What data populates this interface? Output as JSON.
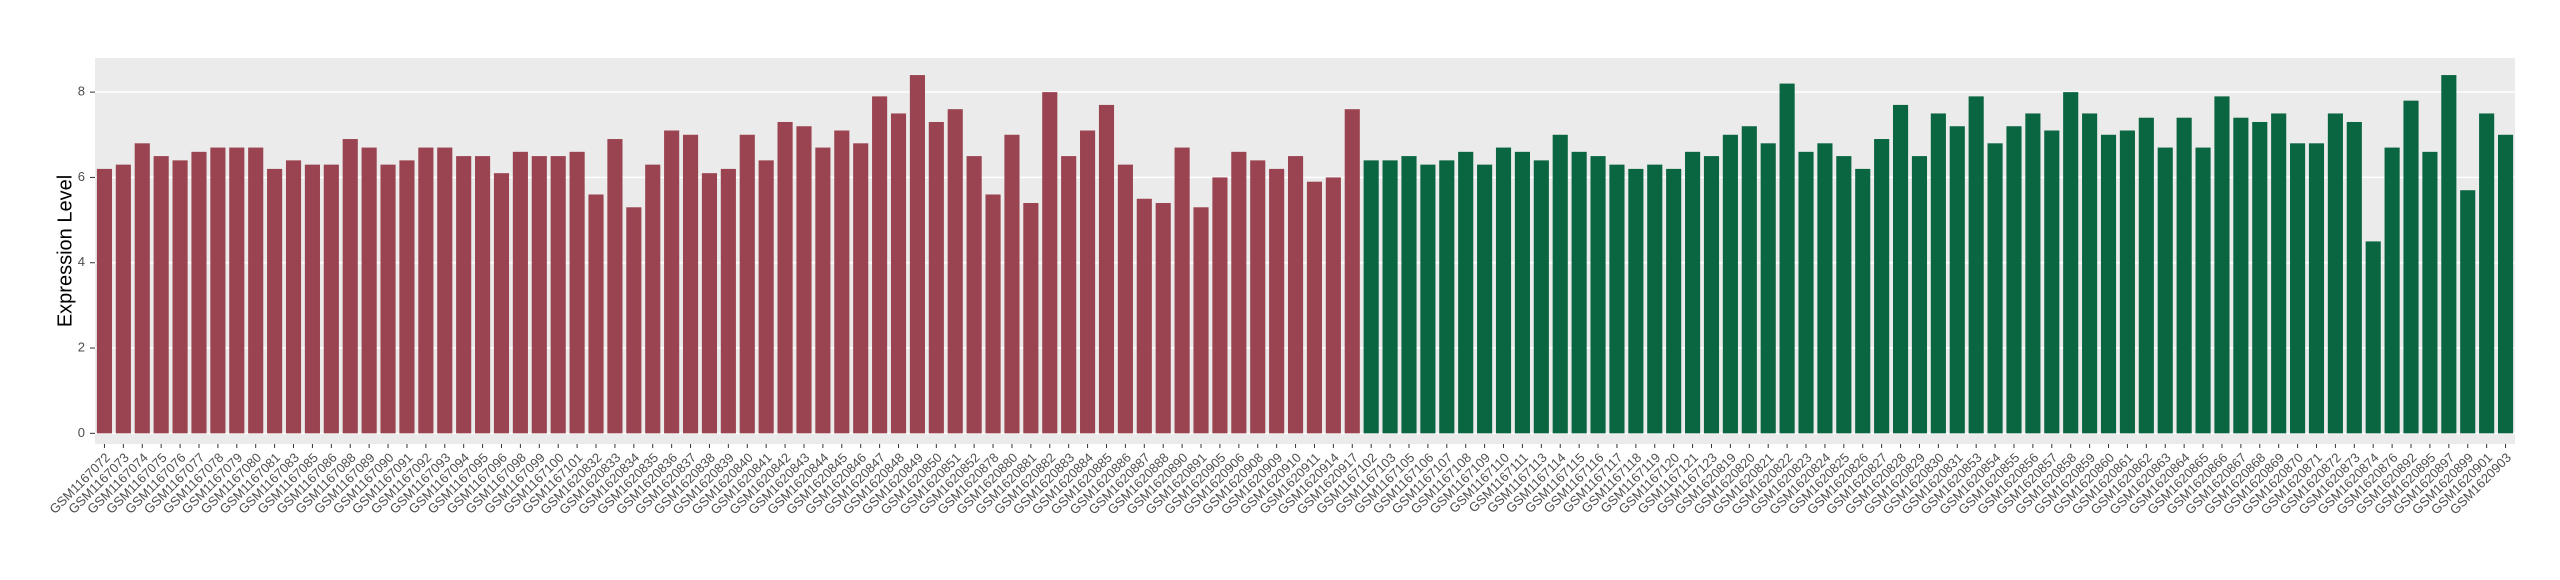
{
  "chart_data": {
    "type": "bar",
    "y_label": "Expression Level",
    "categories": [
      "GSM1167072",
      "GSM1167073",
      "GSM1167074",
      "GSM1167075",
      "GSM1167076",
      "GSM1167077",
      "GSM1167078",
      "GSM1167079",
      "GSM1167080",
      "GSM1167081",
      "GSM1167083",
      "GSM1167085",
      "GSM1167086",
      "GSM1167088",
      "GSM1167089",
      "GSM1167090",
      "GSM1167091",
      "GSM1167092",
      "GSM1167093",
      "GSM1167094",
      "GSM1167095",
      "GSM1167096",
      "GSM1167098",
      "GSM1167099",
      "GSM1167100",
      "GSM1167101",
      "GSM1620832",
      "GSM1620833",
      "GSM1620834",
      "GSM1620835",
      "GSM1620836",
      "GSM1620837",
      "GSM1620838",
      "GSM1620839",
      "GSM1620840",
      "GSM1620841",
      "GSM1620842",
      "GSM1620843",
      "GSM1620844",
      "GSM1620845",
      "GSM1620846",
      "GSM1620847",
      "GSM1620848",
      "GSM1620849",
      "GSM1620850",
      "GSM1620851",
      "GSM1620852",
      "GSM1620878",
      "GSM1620880",
      "GSM1620881",
      "GSM1620882",
      "GSM1620883",
      "GSM1620884",
      "GSM1620885",
      "GSM1620886",
      "GSM1620887",
      "GSM1620888",
      "GSM1620890",
      "GSM1620891",
      "GSM1620905",
      "GSM1620906",
      "GSM1620908",
      "GSM1620909",
      "GSM1620910",
      "GSM1620911",
      "GSM1620914",
      "GSM1620917",
      "GSM1167102",
      "GSM1167103",
      "GSM1167105",
      "GSM1167106",
      "GSM1167107",
      "GSM1167108",
      "GSM1167109",
      "GSM1167110",
      "GSM1167111",
      "GSM1167113",
      "GSM1167114",
      "GSM1167115",
      "GSM1167116",
      "GSM1167117",
      "GSM1167118",
      "GSM1167119",
      "GSM1167120",
      "GSM1167121",
      "GSM1167123",
      "GSM1620819",
      "GSM1620820",
      "GSM1620821",
      "GSM1620822",
      "GSM1620823",
      "GSM1620824",
      "GSM1620825",
      "GSM1620826",
      "GSM1620827",
      "GSM1620828",
      "GSM1620829",
      "GSM1620830",
      "GSM1620831",
      "GSM1620853",
      "GSM1620854",
      "GSM1620855",
      "GSM1620856",
      "GSM1620857",
      "GSM1620858",
      "GSM1620859",
      "GSM1620860",
      "GSM1620861",
      "GSM1620862",
      "GSM1620863",
      "GSM1620864",
      "GSM1620865",
      "GSM1620866",
      "GSM1620867",
      "GSM1620868",
      "GSM1620869",
      "GSM1620870",
      "GSM1620871",
      "GSM1620872",
      "GSM1620873",
      "GSM1620874",
      "GSM1620876",
      "GSM1620892",
      "GSM1620895",
      "GSM1620897",
      "GSM1620899",
      "GSM1620901",
      "GSM1620903"
    ],
    "series": [
      {
        "color": "#9b4451",
        "values": [
          6.2,
          6.3,
          6.8,
          6.5,
          6.4,
          6.6,
          6.7,
          6.7,
          6.7,
          6.2,
          6.4,
          6.3,
          6.3,
          6.9,
          6.7,
          6.3,
          6.4,
          6.7,
          6.7,
          6.5,
          6.5,
          6.1,
          6.6,
          6.5,
          6.5,
          6.6,
          5.6,
          6.9,
          5.3,
          6.3,
          7.1,
          7.0,
          6.1,
          6.2,
          7.0,
          6.4,
          7.3,
          7.2,
          6.7,
          7.1,
          6.8,
          7.9,
          7.5,
          8.4,
          7.3,
          7.6,
          6.5,
          5.6,
          7.0,
          5.4,
          8.0,
          6.5,
          7.1,
          7.7,
          6.3,
          5.5,
          5.4,
          6.7,
          5.3,
          6.0,
          6.6,
          6.4,
          6.2,
          6.5,
          5.9,
          6.0,
          7.6,
          null,
          null,
          null,
          null,
          null,
          null,
          null,
          null,
          null,
          null,
          null,
          null,
          null,
          null,
          null,
          null,
          null,
          null,
          null,
          null,
          null,
          null,
          null,
          null,
          null,
          null,
          null,
          null,
          null,
          null,
          null,
          null,
          null,
          null,
          null,
          null,
          null,
          null,
          null,
          null,
          null,
          null,
          null,
          null,
          null,
          null,
          null,
          null,
          null,
          null,
          null,
          null,
          null,
          null,
          null,
          null,
          null,
          null,
          null,
          null,
          null
        ]
      },
      {
        "color": "#0a6641",
        "values": [
          null,
          null,
          null,
          null,
          null,
          null,
          null,
          null,
          null,
          null,
          null,
          null,
          null,
          null,
          null,
          null,
          null,
          null,
          null,
          null,
          null,
          null,
          null,
          null,
          null,
          null,
          null,
          null,
          null,
          null,
          null,
          null,
          null,
          null,
          null,
          null,
          null,
          null,
          null,
          null,
          null,
          null,
          null,
          null,
          null,
          null,
          null,
          null,
          null,
          null,
          null,
          null,
          null,
          null,
          null,
          null,
          null,
          null,
          null,
          null,
          null,
          null,
          null,
          null,
          null,
          null,
          null,
          6.4,
          6.4,
          6.5,
          6.3,
          6.4,
          6.6,
          6.3,
          6.7,
          6.6,
          6.4,
          7.0,
          6.6,
          6.5,
          6.3,
          6.2,
          6.3,
          6.2,
          6.6,
          6.5,
          7.0,
          7.2,
          6.8,
          8.2,
          6.6,
          6.8,
          6.5,
          6.2,
          6.9,
          7.7,
          6.5,
          7.5,
          7.2,
          7.9,
          6.8,
          7.2,
          7.5,
          7.1,
          8.0,
          7.5,
          7.0,
          7.1,
          7.4,
          6.7,
          7.4,
          6.7,
          7.9,
          7.4,
          7.3,
          7.5,
          6.8,
          6.8,
          7.5,
          7.3,
          4.5,
          6.7,
          7.8,
          6.6,
          8.4,
          5.7,
          7.5,
          7.0
        ]
      }
    ],
    "ylim": [
      -0.25,
      8.8
    ],
    "yticks": [
      0,
      2,
      4,
      6,
      8
    ],
    "grid": true
  }
}
